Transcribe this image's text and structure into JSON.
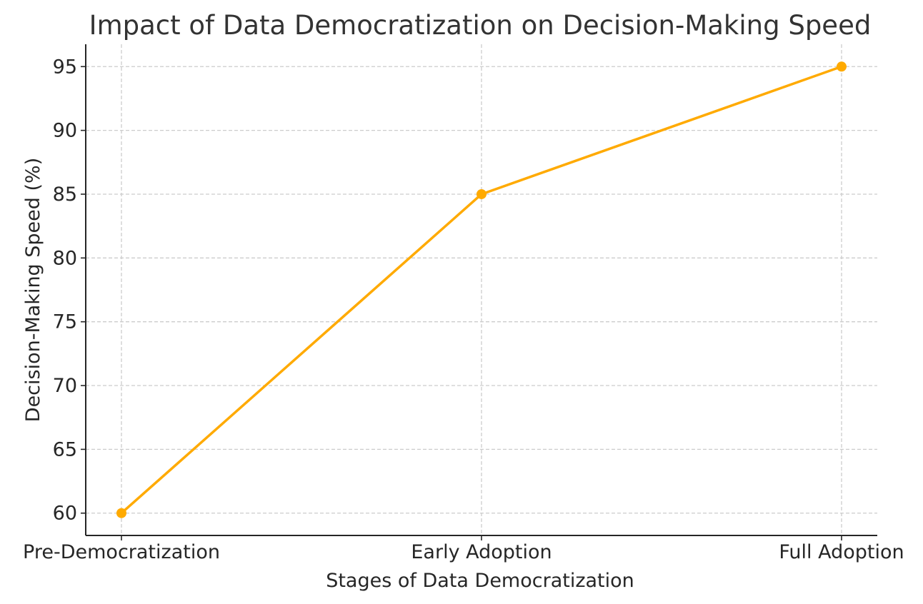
{
  "chart_data": {
    "type": "line",
    "title": "Impact of Data Democratization on Decision-Making Speed",
    "xlabel": "Stages of Data Democratization",
    "ylabel": "Decision-Making Speed (%)",
    "categories": [
      "Pre-Democratization",
      "Early Adoption",
      "Full Adoption"
    ],
    "series": [
      {
        "values": [
          60,
          85,
          95
        ],
        "color": "#FFAA00",
        "marker": "circle"
      }
    ],
    "ylim": [
      58.25,
      96.75
    ],
    "yticks": [
      60,
      65,
      70,
      75,
      80,
      85,
      90,
      95
    ],
    "grid": true,
    "legend": "none"
  }
}
